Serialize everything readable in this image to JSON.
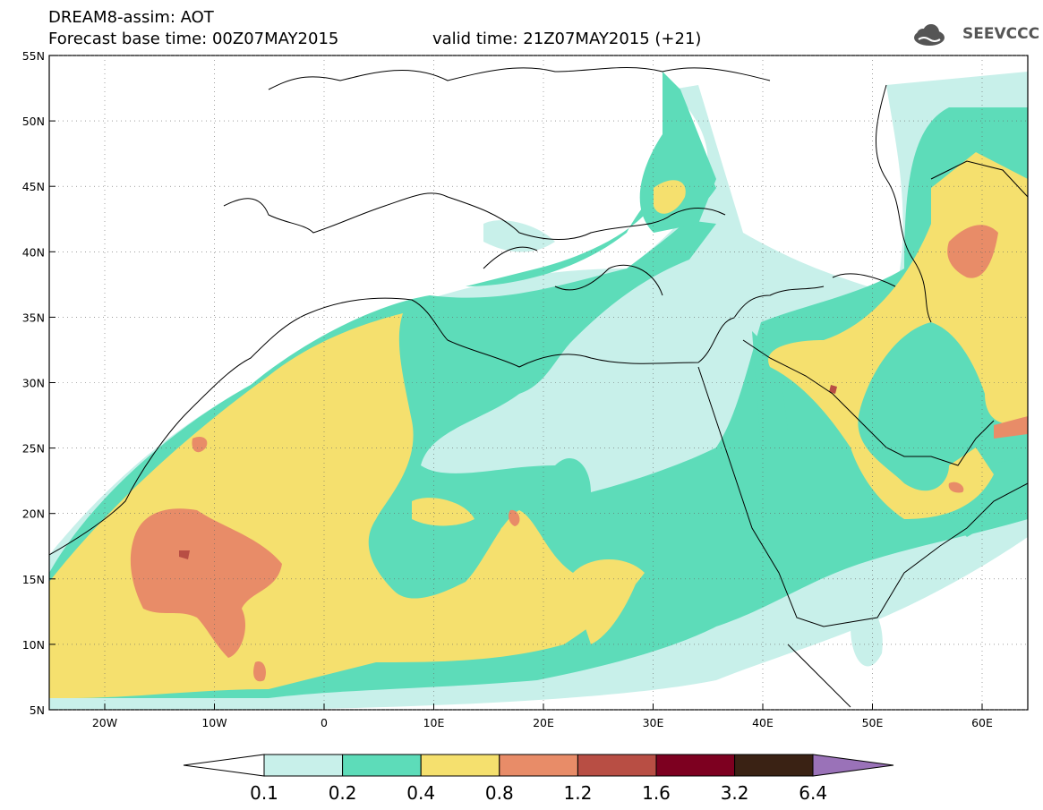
{
  "header": {
    "line1": "DREAM8-assim: AOT",
    "line2_base": "Forecast base time: 00Z07MAY2015",
    "line2_valid": "valid time: 21Z07MAY2015 (+21)"
  },
  "logo": {
    "text": "SEEVCCC",
    "icon": "cloud-logo-icon"
  },
  "map": {
    "lat_labels": [
      "55N",
      "50N",
      "45N",
      "40N",
      "35N",
      "30N",
      "25N",
      "20N",
      "15N",
      "10N",
      "5N"
    ],
    "lon_labels": [
      "20W",
      "10W",
      "0",
      "10E",
      "20E",
      "30E",
      "40E",
      "50E",
      "60E"
    ]
  },
  "colorbar": {
    "labels": [
      "0.1",
      "0.2",
      "0.4",
      "0.8",
      "1.2",
      "1.6",
      "3.2",
      "6.4"
    ],
    "colors": [
      "#c8f0ea",
      "#5ddcb9",
      "#f5e06e",
      "#e88c68",
      "#b84e44",
      "#7d0020",
      "#3a2214",
      "#9a72b8"
    ],
    "low_color": "#ffffff"
  }
}
